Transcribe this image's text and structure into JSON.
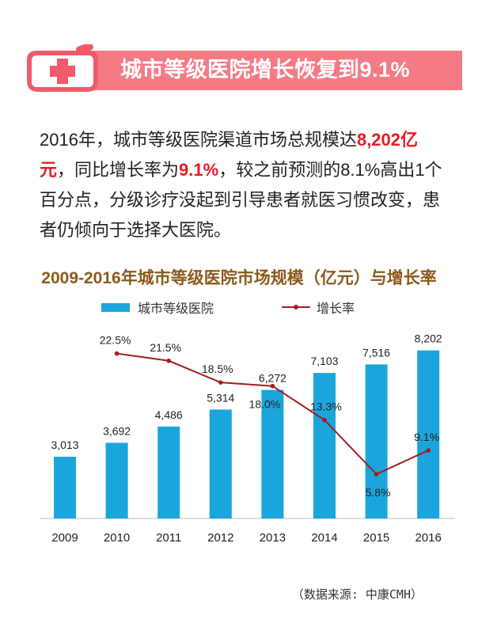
{
  "banner": {
    "title": "城市等级医院增长恢复到9.1%",
    "accent_color": "#f25c6c",
    "icon": "medical-cross-icon"
  },
  "intro": {
    "p1": "2016年，城市等级医院渠道市场总规模达",
    "hl1": "8,202亿元",
    "p2": "，同比增长率为",
    "hl2": "9.1%",
    "p3": "，较之前预测的8.1%高出1个百分点，分级诊疗没起到引导患者就医习惯改变，患者仍倾向于选择大医院。"
  },
  "chart_data": {
    "type": "bar",
    "title": "2009-2016年城市等级医院市场规模（亿元）与增长率",
    "categories": [
      "2009",
      "2010",
      "2011",
      "2012",
      "2013",
      "2014",
      "2015",
      "2016"
    ],
    "series": [
      {
        "name": "城市等级医院",
        "type": "bar",
        "color": "#1aa5dc",
        "values": [
          3013,
          3692,
          4486,
          5314,
          6272,
          7103,
          7516,
          8202
        ],
        "labels": [
          "3,013",
          "3,692",
          "4,486",
          "5,314",
          "6,272",
          "7,103",
          "7,516",
          "8,202"
        ]
      },
      {
        "name": "增长率",
        "type": "line",
        "color": "#a31d1d",
        "x": [
          "2010",
          "2011",
          "2012",
          "2013",
          "2014",
          "2015",
          "2016"
        ],
        "values": [
          22.5,
          21.5,
          18.5,
          18.0,
          13.3,
          5.8,
          9.1
        ],
        "labels": [
          "22.5%",
          "21.5%",
          "18.5%",
          "18.0%",
          "13.3%",
          "5.8%",
          "9.1%"
        ]
      }
    ],
    "legend_position": "top",
    "grid": false
  },
  "source": "（数据来源: 中康CMH）"
}
